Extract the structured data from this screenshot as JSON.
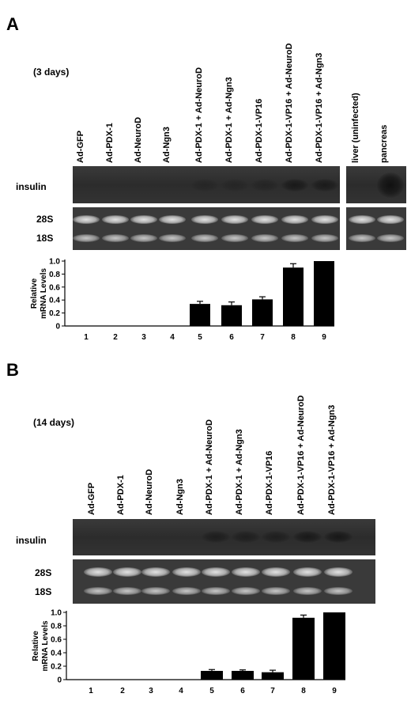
{
  "panels": [
    {
      "letter": "A",
      "days": "(3 days)",
      "lanes": [
        "Ad-GFP",
        "Ad-PDX-1",
        "Ad-NeuroD",
        "Ad-Ngn3",
        "Ad-PDX-1 + Ad-NeuroD",
        "Ad-PDX-1 + Ad-Ngn3",
        "Ad-PDX-1-VP16",
        "Ad-PDX-1-VP16 + Ad-NeuroD",
        "Ad-PDX-1-VP16 + Ad-Ngn3"
      ],
      "controls": [
        "liver (uninfected)",
        "pancreas"
      ],
      "row_labels": {
        "insulin": "insulin",
        "r28": "28S",
        "r18": "18S"
      },
      "insulin_intensity": [
        0,
        0,
        0,
        0,
        0.25,
        0.25,
        0.3,
        0.7,
        0.65
      ],
      "control_insulin_intensity": [
        0,
        1.0
      ]
    },
    {
      "letter": "B",
      "days": "(14 days)",
      "lanes": [
        "Ad-GFP",
        "Ad-PDX-1",
        "Ad-NeuroD",
        "Ad-Ngn3",
        "Ad-PDX-1 + Ad-NeuroD",
        "Ad-PDX-1 + Ad-Ngn3",
        "Ad-PDX-1-VP16",
        "Ad-PDX-1-VP16 + Ad-NeuroD",
        "Ad-PDX-1-VP16 + Ad-Ngn3"
      ],
      "controls": [],
      "row_labels": {
        "insulin": "insulin",
        "r28": "28S",
        "r18": "18S"
      },
      "insulin_intensity": [
        0,
        0,
        0,
        0,
        0.55,
        0.5,
        0.5,
        0.7,
        0.75
      ],
      "control_insulin_intensity": []
    }
  ],
  "chart_data": [
    {
      "type": "bar",
      "title": "",
      "ylabel": "Relative mRNA Levels",
      "xlabel": "",
      "categories": [
        "1",
        "2",
        "3",
        "4",
        "5",
        "6",
        "7",
        "8",
        "9"
      ],
      "values": [
        0,
        0,
        0,
        0,
        0.34,
        0.32,
        0.41,
        0.9,
        1.0
      ],
      "errors": [
        0,
        0,
        0,
        0,
        0.04,
        0.05,
        0.04,
        0.06,
        0
      ],
      "ylim": [
        0,
        1.0
      ],
      "yticks": [
        "0",
        "0.2",
        "0.4",
        "0.6",
        "0.8",
        "1.0"
      ]
    },
    {
      "type": "bar",
      "title": "",
      "ylabel": "Relative mRNA Levels",
      "xlabel": "",
      "categories": [
        "1",
        "2",
        "3",
        "4",
        "5",
        "6",
        "7",
        "8",
        "9"
      ],
      "values": [
        0,
        0,
        0,
        0,
        0.13,
        0.13,
        0.11,
        0.92,
        1.0
      ],
      "errors": [
        0,
        0,
        0,
        0,
        0.02,
        0.015,
        0.03,
        0.04,
        0
      ],
      "ylim": [
        0,
        1.0
      ],
      "yticks": [
        "0",
        "0.2",
        "0.4",
        "0.6",
        "0.8",
        "1.0"
      ]
    }
  ]
}
